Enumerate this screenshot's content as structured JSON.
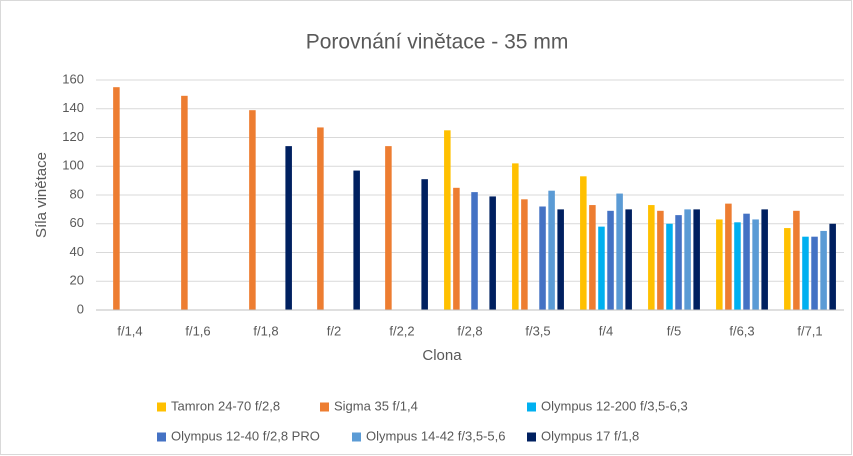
{
  "chart_data": {
    "type": "bar",
    "title": "Porovnání vinětace - 35 mm",
    "x_label": "Clona",
    "y_label": "Síla vinětace",
    "categories": [
      "f/1,4",
      "f/1,6",
      "f/1,8",
      "f/2",
      "f/2,2",
      "f/2,8",
      "f/3,5",
      "f/4",
      "f/5",
      "f/6,3",
      "f/7,1"
    ],
    "series": [
      {
        "name": "Tamron 24-70 f/2,8",
        "color": "#ffc000",
        "values": [
          null,
          null,
          null,
          null,
          null,
          125,
          102,
          93,
          73,
          63,
          57
        ]
      },
      {
        "name": "Sigma 35 f/1,4",
        "color": "#ed7d31",
        "values": [
          155,
          149,
          139,
          127,
          114,
          85,
          77,
          73,
          69,
          74,
          69
        ]
      },
      {
        "name": "Olympus 12-200 f/3,5-6,3",
        "color": "#00b0f0",
        "values": [
          null,
          null,
          null,
          null,
          null,
          null,
          null,
          58,
          60,
          61,
          51
        ]
      },
      {
        "name": "Olympus 12-40 f/2,8 PRO",
        "color": "#4472c4",
        "values": [
          null,
          null,
          null,
          null,
          null,
          82,
          72,
          69,
          66,
          67,
          51
        ]
      },
      {
        "name": "Olympus 14-42 f/3,5-5,6",
        "color": "#5b9bd5",
        "values": [
          null,
          null,
          null,
          null,
          null,
          null,
          83,
          81,
          70,
          63,
          55
        ]
      },
      {
        "name": "Olympus 17 f/1,8",
        "color": "#002060",
        "values": [
          null,
          null,
          114,
          97,
          91,
          79,
          70,
          70,
          70,
          70,
          60
        ]
      }
    ],
    "ylim": [
      0,
      160
    ],
    "yticks": [
      0,
      20,
      40,
      60,
      80,
      100,
      120,
      140,
      160
    ],
    "grid": true,
    "legend": "bottom"
  }
}
